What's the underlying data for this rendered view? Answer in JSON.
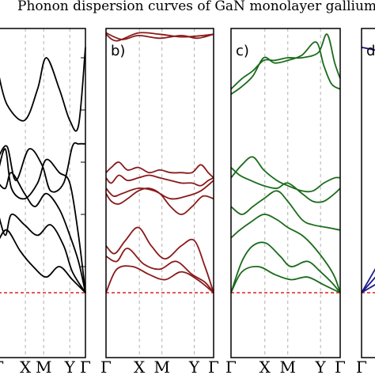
{
  "title": "Phonon dispersion curves of GaN monolayer gallium",
  "chart_data": {
    "type": "line",
    "title": "Phonon dispersion curves of GaN monolayer gallium",
    "x_ticks": [
      "Γ",
      "X",
      "M",
      "Y",
      "Γ"
    ],
    "x_tick_positions": [
      0,
      0.31,
      0.52,
      0.82,
      1.0
    ],
    "ylim": [
      -0.15,
      1.0
    ],
    "zero_line": {
      "y": 0,
      "color": "#e02020",
      "style": "dashed"
    },
    "panels": [
      {
        "label": "",
        "color": "#000000",
        "branches": [
          {
            "x": [
              0,
              0.1,
              0.3,
              0.45,
              0.55,
              0.7,
              0.82,
              0.92,
              1.0
            ],
            "y": [
              0.84,
              0.72,
              0.66,
              0.78,
              0.9,
              0.78,
              0.66,
              0.64,
              0.94
            ]
          },
          {
            "x": [
              0,
              0.1,
              0.2,
              0.35,
              0.5,
              0.6,
              0.75,
              0.85,
              0.92,
              1.0
            ],
            "y": [
              0.52,
              0.56,
              0.43,
              0.55,
              0.49,
              0.39,
              0.42,
              0.56,
              0.57,
              0.57
            ]
          },
          {
            "x": [
              0,
              0.08,
              0.15,
              0.3,
              0.45,
              0.55,
              0.7,
              0.82,
              0.92,
              1.0
            ],
            "y": [
              0.47,
              0.55,
              0.4,
              0.36,
              0.42,
              0.51,
              0.46,
              0.42,
              0.22,
              0.0
            ]
          },
          {
            "x": [
              0,
              0.08,
              0.15,
              0.3,
              0.42,
              0.55,
              0.7,
              0.82,
              0.92,
              1.0
            ],
            "y": [
              0.42,
              0.4,
              0.46,
              0.38,
              0.33,
              0.38,
              0.32,
              0.22,
              0.12,
              0.0
            ]
          },
          {
            "x": [
              0,
              0.08,
              0.15,
              0.3,
              0.45,
              0.6,
              0.75,
              0.85,
              1.0
            ],
            "y": [
              0.3,
              0.22,
              0.3,
              0.26,
              0.22,
              0.26,
              0.18,
              0.08,
              0.0
            ]
          },
          {
            "x": [
              0,
              0.1,
              0.25,
              0.4,
              0.55,
              0.7,
              0.85,
              1.0
            ],
            "y": [
              0.2,
              0.24,
              0.16,
              0.1,
              0.06,
              0.1,
              0.05,
              0.0
            ]
          }
        ]
      },
      {
        "label": "b)",
        "color": "#8b1a1a",
        "branches": [
          {
            "x": [
              0,
              0.1,
              0.3,
              0.5,
              0.7,
              0.9,
              1.0
            ],
            "y": [
              0.99,
              0.965,
              0.995,
              0.99,
              0.98,
              0.985,
              0.99
            ]
          },
          {
            "x": [
              0,
              0.15,
              0.3,
              0.5,
              0.7,
              0.85,
              1.0
            ],
            "y": [
              0.995,
              0.97,
              0.985,
              0.975,
              0.985,
              0.975,
              0.99
            ]
          },
          {
            "x": [
              0,
              0.05,
              0.12,
              0.2,
              0.3,
              0.4,
              0.5,
              0.6,
              0.7,
              0.8,
              0.88,
              0.95,
              1.0
            ],
            "y": [
              0.46,
              0.48,
              0.5,
              0.47,
              0.48,
              0.46,
              0.47,
              0.46,
              0.46,
              0.46,
              0.49,
              0.46,
              0.44
            ]
          },
          {
            "x": [
              0,
              0.05,
              0.12,
              0.2,
              0.3,
              0.4,
              0.5,
              0.6,
              0.7,
              0.8,
              0.88,
              0.95,
              1.0
            ],
            "y": [
              0.44,
              0.42,
              0.45,
              0.43,
              0.44,
              0.45,
              0.44,
              0.43,
              0.42,
              0.42,
              0.41,
              0.43,
              0.44
            ]
          },
          {
            "x": [
              0,
              0.07,
              0.15,
              0.3,
              0.45,
              0.6,
              0.75,
              0.88,
              1.0
            ],
            "y": [
              0.4,
              0.37,
              0.38,
              0.4,
              0.39,
              0.36,
              0.37,
              0.39,
              0.43
            ]
          },
          {
            "x": [
              0,
              0.05,
              0.12,
              0.2,
              0.3,
              0.4,
              0.5,
              0.6,
              0.7,
              0.8,
              0.9,
              1.0
            ],
            "y": [
              0.38,
              0.35,
              0.34,
              0.36,
              0.39,
              0.4,
              0.38,
              0.33,
              0.3,
              0.33,
              0.37,
              0.36
            ]
          },
          {
            "x": [
              0,
              0.08,
              0.18,
              0.3,
              0.42,
              0.55,
              0.7,
              0.82,
              0.92,
              1.0
            ],
            "y": [
              0.18,
              0.15,
              0.2,
              0.25,
              0.18,
              0.13,
              0.18,
              0.2,
              0.1,
              0.0
            ]
          },
          {
            "x": [
              0,
              0.1,
              0.2,
              0.35,
              0.5,
              0.65,
              0.8,
              0.92,
              1.0
            ],
            "y": [
              0.14,
              0.12,
              0.17,
              0.11,
              0.09,
              0.12,
              0.07,
              0.04,
              0.0
            ]
          },
          {
            "x": [
              0,
              0.1,
              0.25,
              0.4,
              0.55,
              0.7,
              0.85,
              1.0
            ],
            "y": [
              0.0,
              0.09,
              0.1,
              0.07,
              0.05,
              0.08,
              0.05,
              0.0
            ]
          }
        ]
      },
      {
        "label": "c)",
        "color": "#1a6b1a",
        "branches": [
          {
            "x": [
              0,
              0.1,
              0.2,
              0.3,
              0.4,
              0.52,
              0.65,
              0.78,
              0.85,
              0.92,
              1.0
            ],
            "y": [
              0.76,
              0.79,
              0.83,
              0.9,
              0.88,
              0.89,
              0.91,
              0.96,
              0.87,
              0.8,
              0.78
            ]
          },
          {
            "x": [
              0,
              0.1,
              0.2,
              0.3,
              0.4,
              0.52,
              0.65,
              0.8,
              0.88,
              0.95,
              1.0
            ],
            "y": [
              0.78,
              0.82,
              0.85,
              0.89,
              0.89,
              0.9,
              0.9,
              0.92,
              0.99,
              0.88,
              0.82
            ]
          },
          {
            "x": [
              0,
              0.1,
              0.2,
              0.3,
              0.42,
              0.52,
              0.65,
              0.75,
              0.85,
              0.95,
              1.0
            ],
            "y": [
              0.44,
              0.49,
              0.52,
              0.47,
              0.43,
              0.41,
              0.39,
              0.39,
              0.42,
              0.44,
              0.44
            ]
          },
          {
            "x": [
              0,
              0.08,
              0.18,
              0.3,
              0.42,
              0.52,
              0.65,
              0.75,
              0.85,
              0.95,
              1.0
            ],
            "y": [
              0.48,
              0.45,
              0.43,
              0.41,
              0.4,
              0.42,
              0.38,
              0.35,
              0.35,
              0.38,
              0.4
            ]
          },
          {
            "x": [
              0,
              0.1,
              0.2,
              0.3,
              0.42,
              0.52,
              0.65,
              0.75,
              0.88,
              1.0
            ],
            "y": [
              0.33,
              0.3,
              0.33,
              0.36,
              0.39,
              0.35,
              0.28,
              0.26,
              0.25,
              0.24
            ]
          },
          {
            "x": [
              0,
              0.08,
              0.18,
              0.3,
              0.42,
              0.52,
              0.65,
              0.75,
              0.88,
              0.95,
              1.0
            ],
            "y": [
              0.21,
              0.24,
              0.27,
              0.3,
              0.28,
              0.25,
              0.22,
              0.18,
              0.11,
              0.06,
              0.0
            ]
          },
          {
            "x": [
              0,
              0.1,
              0.2,
              0.32,
              0.45,
              0.55,
              0.7,
              0.82,
              0.92,
              1.0
            ],
            "y": [
              0.0,
              0.12,
              0.18,
              0.19,
              0.14,
              0.1,
              0.12,
              0.08,
              0.04,
              0.0
            ]
          },
          {
            "x": [
              0,
              0.1,
              0.25,
              0.4,
              0.55,
              0.7,
              0.85,
              1.0
            ],
            "y": [
              0.0,
              0.08,
              0.1,
              0.07,
              0.05,
              0.06,
              0.03,
              0.0
            ]
          }
        ]
      },
      {
        "label": "d",
        "color": "#1a1a8b",
        "branches": [
          {
            "x": [
              0,
              0.3,
              0.6,
              1.0
            ],
            "y": [
              0.94,
              0.92,
              0.95,
              0.93
            ]
          },
          {
            "x": [
              0,
              0.2,
              0.4,
              0.7,
              1.0
            ],
            "y": [
              0.0,
              0.15,
              0.3,
              0.46,
              0.58
            ]
          },
          {
            "x": [
              0,
              0.2,
              0.4,
              0.7,
              1.0
            ],
            "y": [
              0.0,
              0.1,
              0.22,
              0.35,
              0.48
            ]
          },
          {
            "x": [
              0,
              0.3,
              0.6,
              1.0
            ],
            "y": [
              0.0,
              0.08,
              0.18,
              0.28
            ]
          }
        ]
      }
    ]
  }
}
